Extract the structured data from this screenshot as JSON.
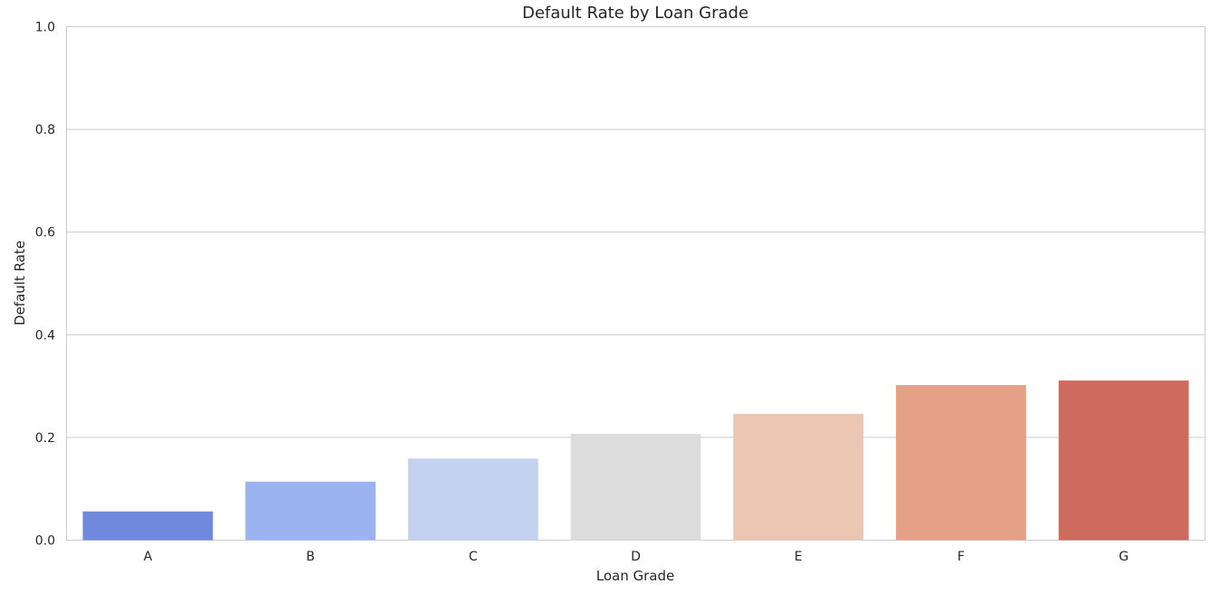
{
  "chart_data": {
    "type": "bar",
    "title": "Default Rate by Loan Grade",
    "xlabel": "Loan Grade",
    "ylabel": "Default Rate",
    "categories": [
      "A",
      "B",
      "C",
      "D",
      "E",
      "F",
      "G"
    ],
    "values": [
      0.056,
      0.114,
      0.159,
      0.207,
      0.246,
      0.302,
      0.311
    ],
    "colors": [
      "#7089dc",
      "#9bb3f1",
      "#c2d2ef",
      "#dcdcdc",
      "#ecc6b3",
      "#e4a188",
      "#cd6b5f"
    ],
    "ylim": [
      0,
      1.0
    ],
    "yticks": [
      "0.0",
      "0.2",
      "0.4",
      "0.6",
      "0.8",
      "1.0"
    ],
    "grid": "horizontal",
    "legend": "none"
  }
}
